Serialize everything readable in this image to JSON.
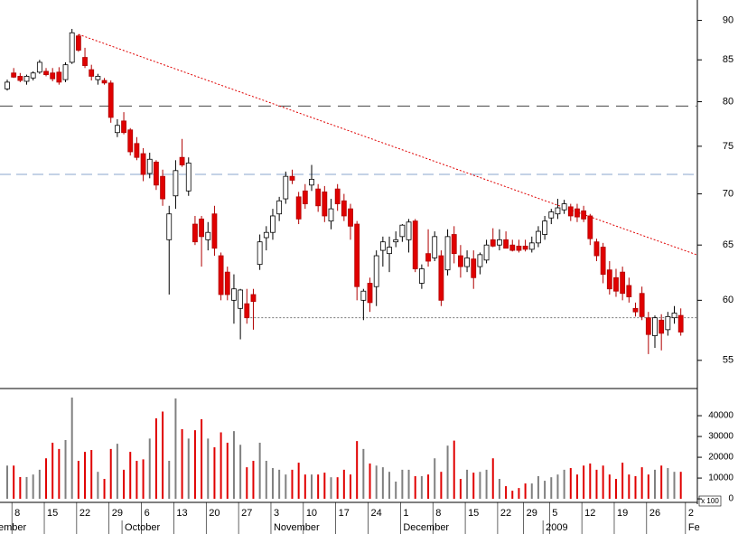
{
  "chart_data": {
    "type": "candlestick",
    "categories": [
      null,
      "8",
      null,
      null,
      null,
      null,
      "15",
      null,
      null,
      null,
      null,
      "22",
      null,
      null,
      null,
      null,
      "29",
      null,
      null,
      null,
      null,
      "6",
      null,
      null,
      null,
      null,
      "13",
      null,
      null,
      null,
      null,
      "20",
      null,
      null,
      null,
      null,
      "27",
      null,
      null,
      null,
      null,
      "3",
      null,
      null,
      null,
      null,
      "10",
      null,
      null,
      null,
      null,
      "17",
      null,
      null,
      null,
      null,
      "24",
      null,
      null,
      null,
      null,
      "1",
      null,
      null,
      null,
      null,
      "8",
      null,
      null,
      null,
      null,
      "15",
      null,
      null,
      null,
      null,
      "22",
      null,
      null,
      null,
      "29",
      null,
      null,
      null,
      "5",
      null,
      null,
      null,
      null,
      "12",
      null,
      null,
      null,
      null,
      "19",
      null,
      null,
      null,
      null,
      "26",
      null,
      null,
      null,
      null,
      null,
      "2"
    ],
    "months": [
      "ember",
      null,
      null,
      null,
      null,
      null,
      null,
      null,
      null,
      null,
      null,
      null,
      null,
      null,
      null,
      null,
      null,
      null,
      "October",
      null,
      null,
      null,
      null,
      null,
      null,
      null,
      null,
      null,
      null,
      null,
      null,
      null,
      null,
      null,
      null,
      null,
      null,
      null,
      null,
      null,
      null,
      "November",
      null,
      null,
      null,
      null,
      null,
      null,
      null,
      null,
      null,
      null,
      null,
      null,
      null,
      null,
      null,
      null,
      null,
      null,
      null,
      "December",
      null,
      null,
      null,
      null,
      null,
      null,
      null,
      null,
      null,
      null,
      null,
      null,
      null,
      null,
      null,
      null,
      null,
      null,
      null,
      null,
      null,
      "2009",
      null,
      null,
      null,
      null,
      null,
      null,
      null,
      null,
      null,
      null,
      null,
      null,
      null,
      null,
      null,
      null,
      null,
      null,
      null,
      null,
      null,
      "Fe"
    ],
    "open": [
      81.5,
      83.4,
      83.0,
      82.4,
      82.8,
      83.5,
      83.6,
      83.4,
      83.5,
      82.6,
      84.7,
      88.0,
      85.3,
      83.8,
      82.6,
      82.5,
      82.2,
      76.5,
      77.8,
      76.8,
      75.3,
      74.2,
      72.1,
      73.3,
      71.8,
      65.5,
      69.8,
      73.8,
      70.3,
      67.0,
      67.5,
      65.5,
      68.0,
      64.0,
      62.5,
      60.0,
      59.3,
      59.7,
      60.5,
      63.2,
      65.7,
      66.2,
      68.0,
      69.5,
      71.8,
      69.7,
      70.3,
      70.9,
      70.5,
      70.2,
      67.3,
      70.5,
      69.3,
      68.5,
      67.0,
      60.0,
      61.5,
      61.2,
      64.5,
      64.2,
      65.3,
      65.8,
      65.5,
      67.3,
      61.5,
      64.2,
      63.8,
      64.0,
      62.7,
      66.0,
      64.0,
      63.0,
      63.7,
      63.0,
      63.6,
      65.5,
      65.0,
      65.5,
      65.0,
      64.9,
      64.9,
      64.6,
      65.2,
      66.0,
      67.6,
      68.0,
      68.4,
      68.7,
      68.5,
      68.3,
      67.8,
      65.3,
      64.8,
      62.7,
      62.0,
      62.5,
      61.3,
      59.3,
      60.6,
      58.5,
      57.0,
      58.3,
      57.5,
      58.5,
      58.7,
      null
    ],
    "high": [
      82.6,
      84.0,
      83.4,
      83.2,
      83.6,
      85.0,
      84.0,
      84.0,
      84.1,
      84.7,
      88.9,
      88.2,
      86.5,
      84.4,
      83.3,
      82.8,
      82.5,
      78.0,
      78.8,
      77.0,
      76.0,
      74.8,
      74.3,
      73.5,
      72.5,
      68.8,
      73.5,
      75.8,
      73.8,
      67.8,
      67.8,
      67.2,
      68.8,
      64.3,
      63.0,
      62.3,
      61.0,
      61.0,
      61.0,
      66.0,
      66.8,
      68.5,
      69.7,
      72.3,
      72.5,
      70.2,
      71.0,
      73.0,
      71.0,
      70.8,
      69.5,
      71.0,
      70.0,
      69.0,
      67.3,
      61.0,
      62.0,
      64.5,
      65.8,
      65.8,
      66.3,
      67.0,
      67.5,
      67.5,
      63.2,
      66.5,
      66.3,
      64.5,
      66.5,
      66.8,
      65.0,
      64.5,
      64.5,
      64.3,
      65.5,
      66.6,
      66.5,
      66.3,
      65.5,
      65.5,
      65.5,
      65.8,
      66.8,
      67.8,
      68.5,
      69.5,
      69.4,
      69.0,
      69.0,
      68.8,
      68.0,
      65.6,
      65.2,
      63.5,
      62.8,
      63.0,
      62.0,
      59.8,
      61.2,
      59.0,
      58.7,
      58.8,
      59.0,
      59.5,
      59.3,
      null
    ],
    "low": [
      81.3,
      82.8,
      82.3,
      82.0,
      82.5,
      83.3,
      83.0,
      82.4,
      82.0,
      82.3,
      84.5,
      86.0,
      84.0,
      82.5,
      82.0,
      82.0,
      77.6,
      76.0,
      76.3,
      74.0,
      73.5,
      71.3,
      71.6,
      70.4,
      68.8,
      60.5,
      68.5,
      72.8,
      69.8,
      65.0,
      63.0,
      64.5,
      64.0,
      60.0,
      60.0,
      58.0,
      56.7,
      58.0,
      57.5,
      62.7,
      64.5,
      65.5,
      67.3,
      69.0,
      71.0,
      67.0,
      68.5,
      70.3,
      68.2,
      67.2,
      66.5,
      68.3,
      67.3,
      65.5,
      60.0,
      58.3,
      59.0,
      59.5,
      63.0,
      62.5,
      64.8,
      65.3,
      64.3,
      62.5,
      61.0,
      63.0,
      63.5,
      59.5,
      62.2,
      63.3,
      62.0,
      62.5,
      61.0,
      62.3,
      63.3,
      64.8,
      64.5,
      64.7,
      64.4,
      64.3,
      64.4,
      64.3,
      64.8,
      65.5,
      67.0,
      67.5,
      68.0,
      67.3,
      67.2,
      67.2,
      65.0,
      63.5,
      61.5,
      60.5,
      60.3,
      60.0,
      59.8,
      58.6,
      58.3,
      55.5,
      56.0,
      55.8,
      57.0,
      58.0,
      57.0,
      null
    ],
    "close": [
      82.3,
      82.9,
      82.5,
      83.0,
      83.4,
      84.7,
      83.2,
      82.7,
      82.3,
      84.4,
      88.4,
      86.2,
      84.3,
      83.0,
      83.0,
      82.2,
      78.2,
      77.3,
      76.5,
      74.4,
      73.8,
      72.0,
      73.6,
      70.9,
      69.5,
      68.0,
      72.4,
      73.0,
      73.2,
      65.3,
      65.8,
      66.2,
      64.7,
      60.5,
      60.5,
      61.0,
      60.9,
      58.5,
      59.9,
      65.3,
      66.2,
      67.8,
      69.3,
      71.8,
      71.4,
      67.5,
      69.0,
      71.5,
      68.8,
      67.8,
      68.5,
      69.0,
      67.8,
      66.8,
      61.2,
      60.8,
      59.8,
      64.0,
      65.3,
      64.8,
      65.5,
      66.9,
      67.2,
      62.8,
      62.8,
      63.5,
      65.8,
      60.0,
      65.8,
      64.2,
      63.0,
      63.8,
      62.0,
      64.1,
      65.0,
      64.9,
      65.5,
      64.7,
      64.5,
      64.5,
      64.6,
      65.2,
      66.3,
      67.3,
      68.2,
      68.6,
      69.0,
      67.8,
      67.7,
      67.5,
      65.6,
      64.0,
      62.3,
      61.0,
      60.8,
      60.6,
      60.3,
      59.0,
      58.6,
      57.1,
      58.5,
      57.2,
      58.6,
      58.9,
      57.3,
      null
    ],
    "up_color": "#ffffff",
    "down_color": "#e00000",
    "ylim": [
      52.8,
      92.7
    ],
    "yticks": [
      55,
      60,
      65,
      70,
      75,
      80,
      85,
      90
    ],
    "log_scale": true,
    "ref_lines": [
      {
        "value": 79.5,
        "color": "#444444",
        "dash": "14 8"
      },
      {
        "value": 72.0,
        "color": "#88a4cc",
        "dash": "12 6"
      },
      {
        "value": 58.5,
        "color": "#777777",
        "dash": "2 2",
        "start": 37
      }
    ],
    "trendline": {
      "x": [
        11,
        106.4
      ],
      "y": [
        88.2,
        64.1
      ],
      "color": "#e00000"
    },
    "volume": {
      "unit_label": "x 100",
      "ylim": [
        -1700,
        52200
      ],
      "yticks": [
        0,
        10000,
        20000,
        30000,
        40000
      ],
      "values": [
        16000,
        16000,
        10500,
        10500,
        11700,
        14000,
        19500,
        27000,
        24000,
        28300,
        48700,
        18300,
        22600,
        23500,
        13000,
        9600,
        24000,
        26500,
        14000,
        22600,
        18300,
        19000,
        29000,
        38700,
        42000,
        18300,
        48300,
        33500,
        29000,
        33000,
        38300,
        29000,
        24800,
        32000,
        27000,
        32600,
        26000,
        15200,
        18300,
        27000,
        18300,
        14800,
        14000,
        11700,
        14000,
        17400,
        11700,
        11700,
        11700,
        12600,
        10400,
        10400,
        14000,
        11700,
        27800,
        24000,
        17000,
        16000,
        15200,
        13000,
        8300,
        14000,
        14000,
        10900,
        10900,
        11700,
        19500,
        13000,
        25600,
        28000,
        9600,
        14000,
        12600,
        13000,
        14000,
        19500,
        9600,
        6100,
        3900,
        5200,
        7400,
        7400,
        10900,
        8700,
        10400,
        11700,
        14000,
        14800,
        11700,
        16000,
        17000,
        14000,
        16000,
        11700,
        9600,
        17400,
        11700,
        10900,
        15200,
        11700,
        14000,
        16000,
        14800,
        13000,
        13000,
        null
      ],
      "up_color": "#808080",
      "down_color": "#e00000"
    }
  }
}
